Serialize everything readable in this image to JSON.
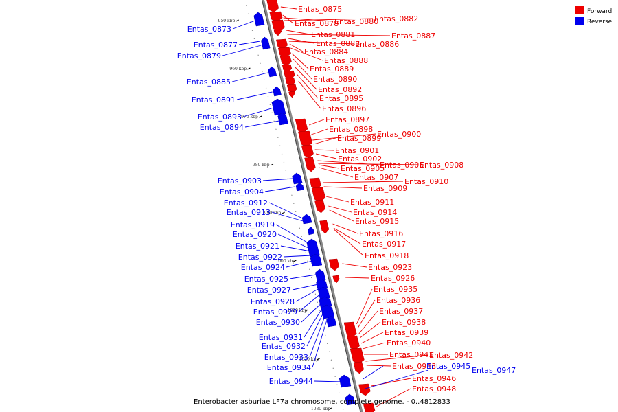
{
  "caption": "Enterobacter asburiae LF7a chromosome, complete genome. - 0..4812833",
  "colors": {
    "forward": "#ee0000",
    "reverse": "#0000ee",
    "backbone": "#888888"
  },
  "legend": [
    {
      "key": "forward",
      "label": "Forward"
    },
    {
      "key": "reverse",
      "label": "Reverse"
    }
  ],
  "ticks": [
    "950 kbp",
    "960 kbp",
    "970 kbp",
    "980 kbp",
    "990 kbp",
    "1000 kbp",
    "1010 kbp",
    "1020 kbp",
    "1030 kbp"
  ],
  "reverse_genes": [
    "Entas_0873",
    "Entas_0877",
    "Entas_0879",
    "Entas_0885",
    "Entas_0891",
    "Entas_0893",
    "Entas_0894",
    "Entas_0903",
    "Entas_0904",
    "Entas_0912",
    "Entas_0913",
    "Entas_0919",
    "Entas_0920",
    "Entas_0921",
    "Entas_0922",
    "Entas_0924",
    "Entas_0925",
    "Entas_0927",
    "Entas_0928",
    "Entas_0929",
    "Entas_0930",
    "Entas_0931",
    "Entas_0932",
    "Entas_0933",
    "Entas_0934",
    "Entas_0944",
    "Entas_0945",
    "Entas_0947"
  ],
  "forward_genes": [
    "Entas_0875",
    "Entas_0878",
    "Entas_0880",
    "Entas_0882",
    "Entas_0881",
    "Entas_0887",
    "Entas_0883",
    "Entas_0886",
    "Entas_0884",
    "Entas_0888",
    "Entas_0889",
    "Entas_0890",
    "Entas_0892",
    "Entas_0895",
    "Entas_0896",
    "Entas_0897",
    "Entas_0898",
    "Entas_0900",
    "Entas_0899",
    "Entas_0901",
    "Entas_0902",
    "Entas_0906",
    "Entas_0908",
    "Entas_0905",
    "Entas_0907",
    "Entas_0910",
    "Entas_0909",
    "Entas_0911",
    "Entas_0914",
    "Entas_0915",
    "Entas_0916",
    "Entas_0917",
    "Entas_0918",
    "Entas_0923",
    "Entas_0926",
    "Entas_0935",
    "Entas_0936",
    "Entas_0937",
    "Entas_0938",
    "Entas_0939",
    "Entas_0940",
    "Entas_0941",
    "Entas_0942",
    "Entas_0943",
    "Entas_0946",
    "Entas_0948"
  ]
}
